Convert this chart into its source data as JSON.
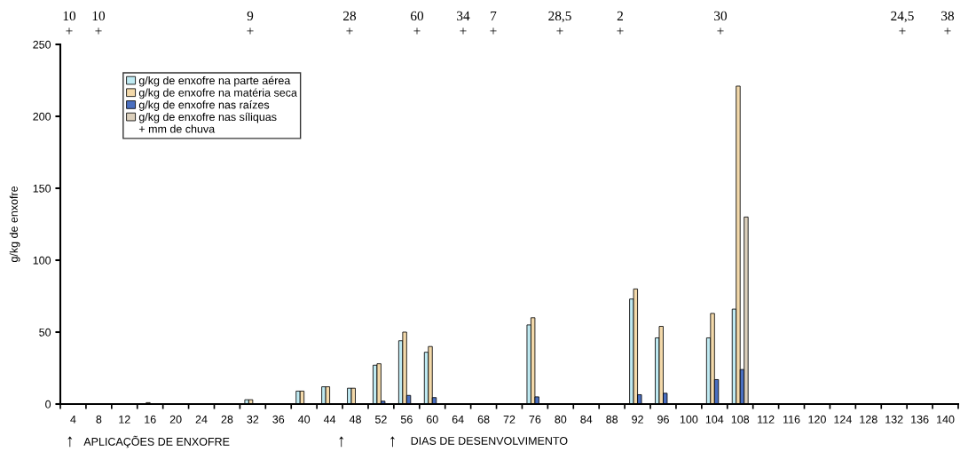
{
  "chart_data": {
    "type": "bar",
    "ylabel": "g/kg de enxofre",
    "xlabel": "DIAS DE DESENVOLVIMENTO",
    "categories": [
      "4",
      "8",
      "12",
      "16",
      "20",
      "24",
      "28",
      "32",
      "36",
      "40",
      "44",
      "48",
      "52",
      "56",
      "60",
      "64",
      "68",
      "72",
      "76",
      "80",
      "84",
      "88",
      "92",
      "96",
      "100",
      "104",
      "108",
      "112",
      "116",
      "120",
      "124",
      "128",
      "132",
      "136",
      "140"
    ],
    "series": [
      {
        "name": "g/kg de enxofre na parte aérea",
        "color": "#bfeaf2",
        "values": [
          null,
          null,
          null,
          null,
          null,
          null,
          null,
          3,
          null,
          9,
          12,
          11,
          27,
          44,
          36,
          null,
          null,
          null,
          55,
          null,
          null,
          null,
          73,
          46,
          null,
          46,
          66,
          null,
          null,
          null,
          null,
          null,
          null,
          null,
          null
        ]
      },
      {
        "name": "g/kg de enxofre na matéria seca",
        "color": "#f3d9aa",
        "values": [
          null,
          null,
          null,
          1,
          null,
          null,
          null,
          3,
          null,
          9,
          12,
          11,
          28,
          50,
          40,
          null,
          null,
          null,
          60,
          null,
          null,
          null,
          80,
          54,
          null,
          63,
          221,
          null,
          null,
          null,
          null,
          null,
          null,
          null,
          null
        ]
      },
      {
        "name": "g/kg de enxofre nas raízes",
        "color": "#4a6fc0",
        "values": [
          null,
          null,
          null,
          null,
          null,
          null,
          null,
          null,
          null,
          null,
          null,
          null,
          2,
          6,
          4.5,
          null,
          null,
          null,
          5,
          null,
          null,
          null,
          6.5,
          7.5,
          null,
          17,
          24,
          null,
          null,
          null,
          null,
          null,
          null,
          null,
          null
        ]
      },
      {
        "name": "g/kg de enxofre nas síliquas",
        "color": "#dcd0bc",
        "values": [
          null,
          null,
          null,
          null,
          null,
          null,
          null,
          null,
          null,
          null,
          null,
          null,
          null,
          null,
          null,
          null,
          null,
          null,
          null,
          null,
          null,
          null,
          null,
          null,
          null,
          null,
          130,
          null,
          null,
          null,
          null,
          null,
          null,
          null,
          null
        ]
      }
    ],
    "ylim": [
      0,
      250
    ],
    "yticks": [
      0,
      50,
      100,
      150,
      200,
      250
    ],
    "grid": false,
    "legend": "top left",
    "annotations": [
      "10\n+",
      "10\n+",
      "9\n+",
      "28\n+",
      "60\n+",
      "34\n+",
      "7\n+",
      "28,5\n+",
      "2\n+",
      "30\n+",
      "24,5\n+",
      "38\n+",
      "+ mm de chuva",
      "↑",
      "APLICAÇÕES DE ENXOFRE",
      "↑",
      "↑"
    ]
  }
}
